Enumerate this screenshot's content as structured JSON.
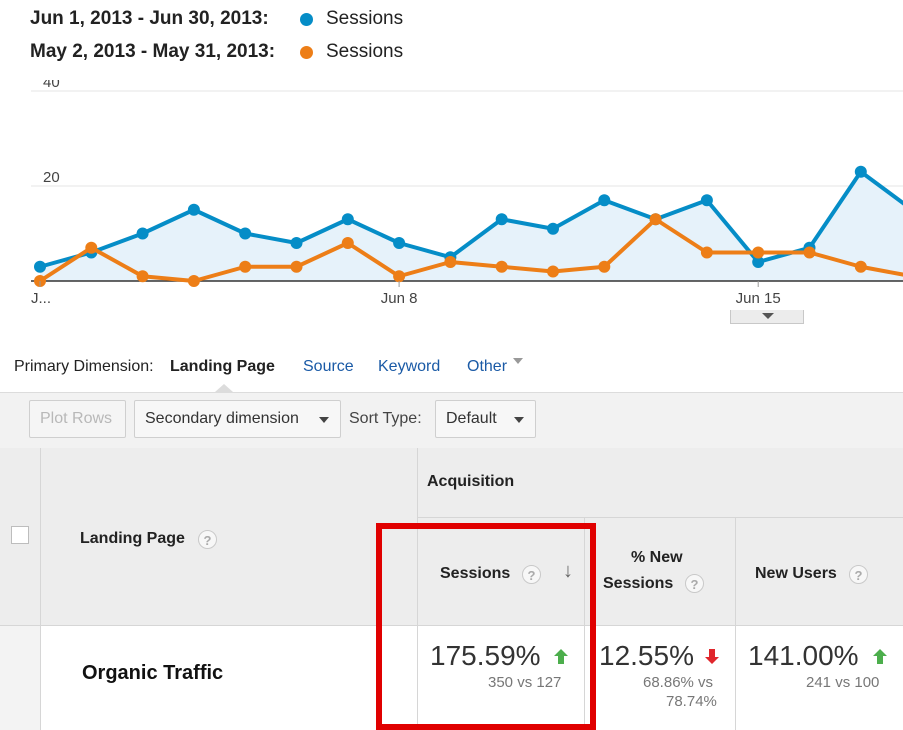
{
  "legend": [
    {
      "range": "Jun 1, 2013 - Jun 30, 2013:",
      "series": "Sessions",
      "color": "#058dc7"
    },
    {
      "range": "May 2, 2013 - May 31, 2013:",
      "series": "Sessions",
      "color": "#ed7e17"
    }
  ],
  "chart_data": {
    "type": "line",
    "y_ticks": [
      "40",
      "20"
    ],
    "ylim": [
      0,
      40
    ],
    "x_ticks": [
      "J...",
      "Jun 8",
      "Jun 15"
    ],
    "grid": true,
    "series": [
      {
        "name": "Sessions",
        "range": "Jun 1, 2013 - Jun 30, 2013",
        "color": "#058dc7",
        "area": true,
        "values": [
          3,
          6,
          10,
          15,
          10,
          8,
          13,
          8,
          5,
          13,
          11,
          17,
          13,
          17,
          4,
          7,
          23,
          15
        ]
      },
      {
        "name": "Sessions",
        "range": "May 2, 2013 - May 31, 2013",
        "color": "#ed7e17",
        "area": false,
        "values": [
          0,
          7,
          1,
          0,
          3,
          3,
          8,
          1,
          4,
          3,
          2,
          3,
          13,
          6,
          6,
          6,
          3,
          1
        ]
      }
    ]
  },
  "primary_dimension": {
    "label": "Primary Dimension:",
    "active": "Landing Page",
    "links": [
      "Source",
      "Keyword",
      "Other"
    ]
  },
  "toolbar": {
    "plot_rows": "Plot Rows",
    "secondary_dimension": "Secondary dimension",
    "sort_type_label": "Sort Type:",
    "sort_type_value": "Default"
  },
  "table": {
    "col_landing_page": "Landing Page",
    "group_acquisition": "Acquisition",
    "col_sessions": "Sessions",
    "col_new_sessions": "% New Sessions",
    "col_new_sessions_line1": "% New",
    "col_new_sessions_line2": "Sessions",
    "col_new_users": "New Users",
    "help_glyph": "?",
    "sort_glyph": "↓",
    "rows": [
      {
        "label": "Organic Traffic",
        "sessions": {
          "value": "175.59%",
          "detail": "350 vs 127",
          "trend": "up",
          "trend_color": "#4cae4c"
        },
        "new_sessions": {
          "value": "12.55%",
          "detail_line1": "68.86% vs",
          "detail_line2": "78.74%",
          "trend": "down",
          "trend_color": "#e0262c"
        },
        "new_users": {
          "value": "141.00%",
          "detail": "241 vs 100",
          "trend": "up",
          "trend_color": "#4cae4c"
        }
      }
    ]
  }
}
